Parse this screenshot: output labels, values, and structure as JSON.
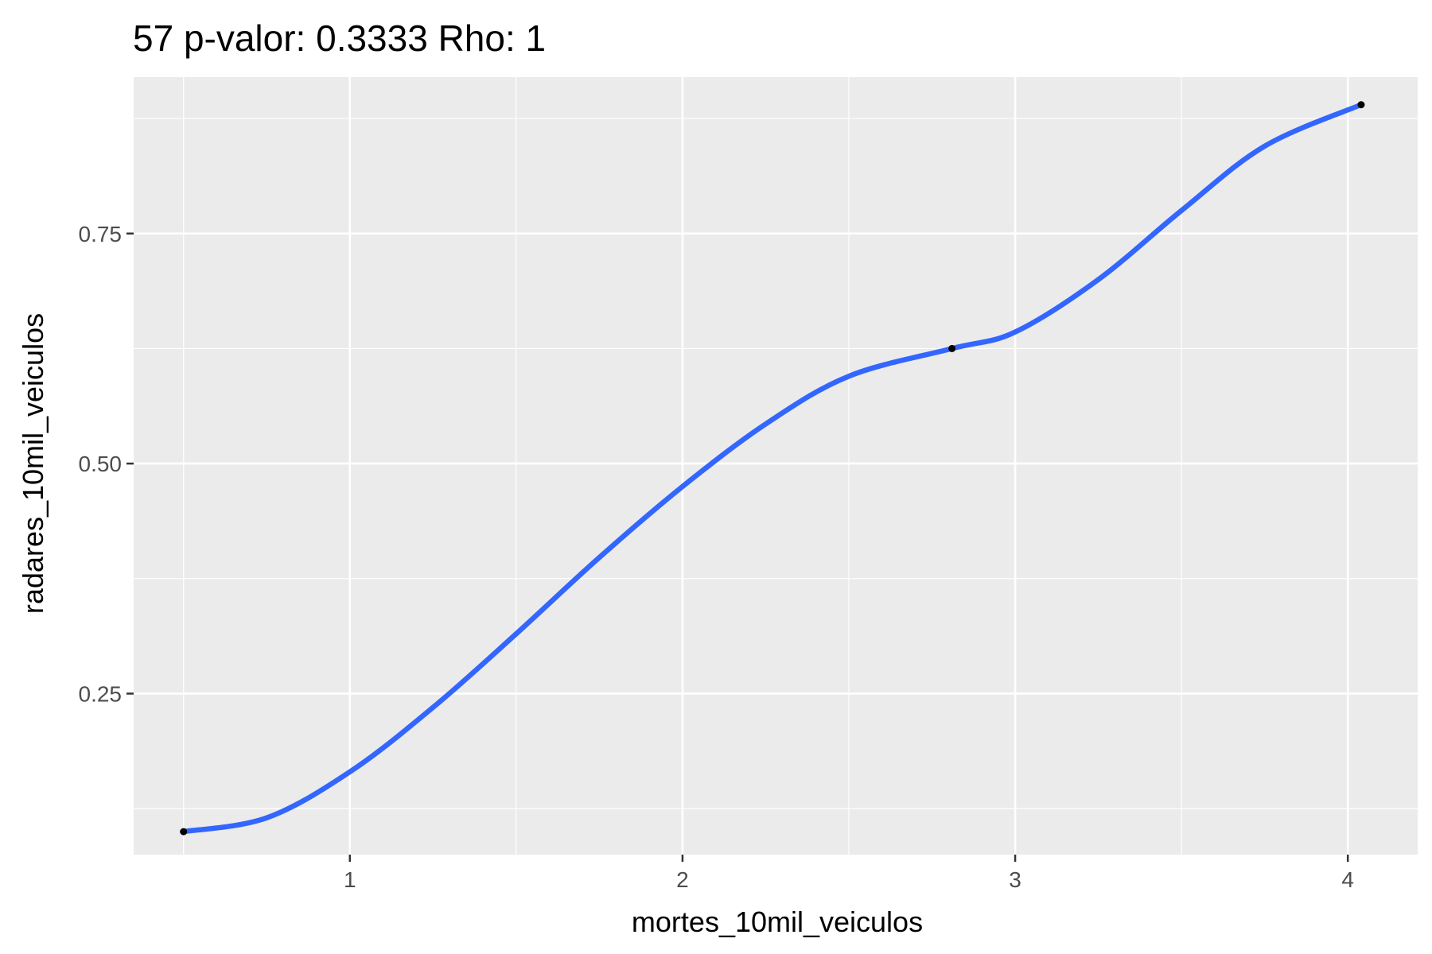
{
  "chart_data": {
    "type": "line",
    "title": "57 p-valor: 0.3333 Rho: 1",
    "xlabel": "mortes_10mil_veiculos",
    "ylabel": "radares_10mil_veiculos",
    "xlim": [
      0.35,
      4.21
    ],
    "ylim": [
      0.075,
      0.92
    ],
    "x_ticks": [
      1,
      2,
      3,
      4
    ],
    "x_tick_labels": [
      "1",
      "2",
      "3",
      "4"
    ],
    "y_ticks": [
      0.25,
      0.5,
      0.75
    ],
    "y_tick_labels": [
      "0.25",
      "0.50",
      "0.75"
    ],
    "x_minor_ticks": [
      0.5,
      1.5,
      2.5,
      3.5
    ],
    "y_minor_ticks": [
      0.125,
      0.375,
      0.625,
      0.875
    ],
    "grid": true,
    "points": [
      {
        "x": 0.5,
        "y": 0.1
      },
      {
        "x": 2.81,
        "y": 0.625
      },
      {
        "x": 4.04,
        "y": 0.89
      }
    ],
    "smooth_line": {
      "color": "#3366ff",
      "points": [
        {
          "x": 0.5,
          "y": 0.1
        },
        {
          "x": 0.75,
          "y": 0.115
        },
        {
          "x": 1.0,
          "y": 0.165
        },
        {
          "x": 1.25,
          "y": 0.235
        },
        {
          "x": 1.5,
          "y": 0.315
        },
        {
          "x": 1.75,
          "y": 0.398
        },
        {
          "x": 2.0,
          "y": 0.475
        },
        {
          "x": 2.25,
          "y": 0.543
        },
        {
          "x": 2.5,
          "y": 0.595
        },
        {
          "x": 2.81,
          "y": 0.625
        },
        {
          "x": 3.0,
          "y": 0.643
        },
        {
          "x": 3.25,
          "y": 0.7
        },
        {
          "x": 3.5,
          "y": 0.775
        },
        {
          "x": 3.75,
          "y": 0.845
        },
        {
          "x": 4.04,
          "y": 0.89
        }
      ]
    },
    "colors": {
      "panel_background": "#ebebeb",
      "grid": "#ffffff",
      "line": "#3366ff",
      "points": "#000000"
    }
  }
}
